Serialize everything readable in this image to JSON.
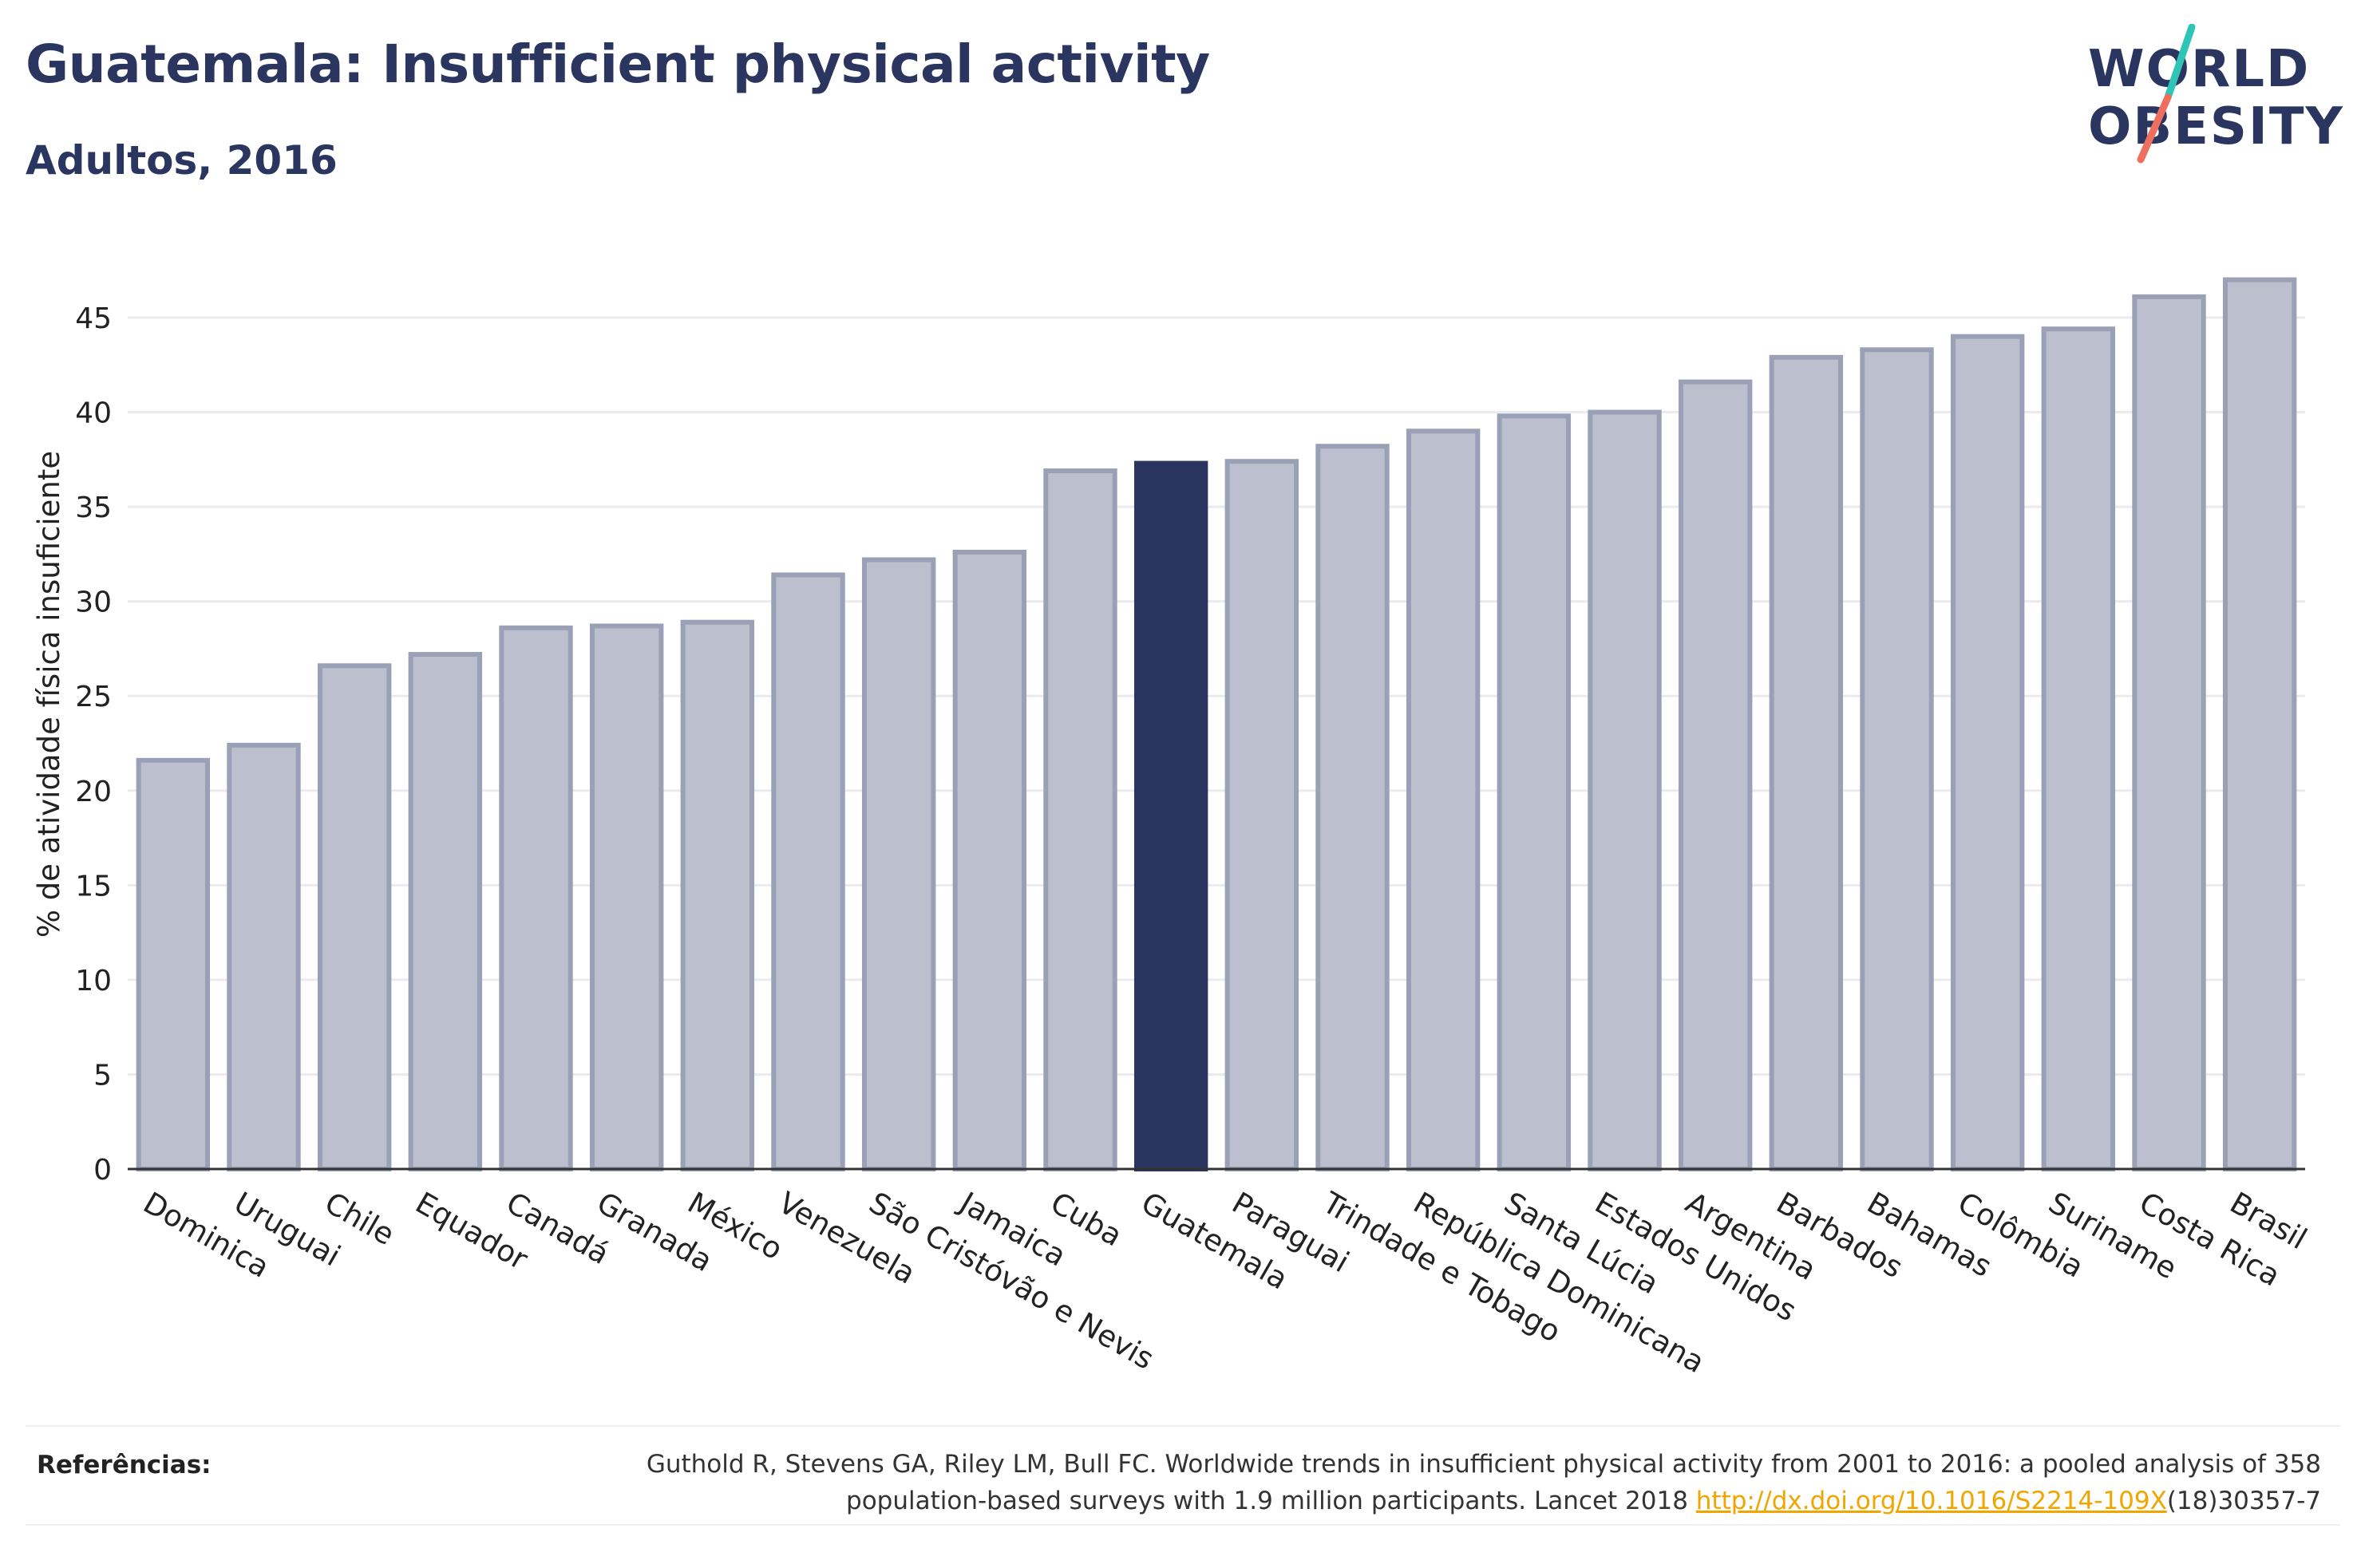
{
  "header": {
    "title": "Guatemala: Insufficient physical activity",
    "subtitle": "Adultos, 2016"
  },
  "logo": {
    "line1": "WORLD",
    "line2": "OBESITY",
    "colors": {
      "text": "#2a3560",
      "accent_teal": "#2ec4b6",
      "accent_coral": "#ef6f5e"
    }
  },
  "colors": {
    "bar_fill": "#bcc0ce",
    "bar_stroke": "#9aa0b6",
    "highlight": "#2a3560",
    "grid": "#e9ebef",
    "axis_text": "#222222"
  },
  "chart_data": {
    "type": "bar",
    "title": "",
    "xlabel": "",
    "ylabel": "% de atividade física insuficiente",
    "ylim": [
      0,
      48.5
    ],
    "yticks": [
      0,
      5,
      10,
      15,
      20,
      25,
      30,
      35,
      40,
      45
    ],
    "grid": true,
    "highlight": "Guatemala",
    "categories": [
      "Dominica",
      "Uruguai",
      "Chile",
      "Equador",
      "Canadá",
      "Granada",
      "México",
      "Venezuela",
      "São Cristóvão e Nevis",
      "Jamaica",
      "Cuba",
      "Guatemala",
      "Paraguai",
      "Trindade e Tobago",
      "República Dominicana",
      "Santa Lúcia",
      "Estados Unidos",
      "Argentina",
      "Barbados",
      "Bahamas",
      "Colômbia",
      "Suriname",
      "Costa Rica",
      "Brasil"
    ],
    "values": [
      21.6,
      22.4,
      26.6,
      27.2,
      28.6,
      28.7,
      28.9,
      31.4,
      32.2,
      32.6,
      36.9,
      37.3,
      37.4,
      38.2,
      39.0,
      39.8,
      40.0,
      41.6,
      42.9,
      43.3,
      44.0,
      44.4,
      46.1,
      47.0
    ]
  },
  "references": {
    "label": "Referências:",
    "text_before": "Guthold R, Stevens GA, Riley LM, Bull FC. Worldwide trends in insufficient physical activity from 2001 to 2016: a pooled analysis of 358 population-based surveys with 1.9 million participants. Lancet 2018 ",
    "link": "http://dx.doi.org/10.1016/S2214-109X",
    "text_after": "(18)30357-7"
  }
}
